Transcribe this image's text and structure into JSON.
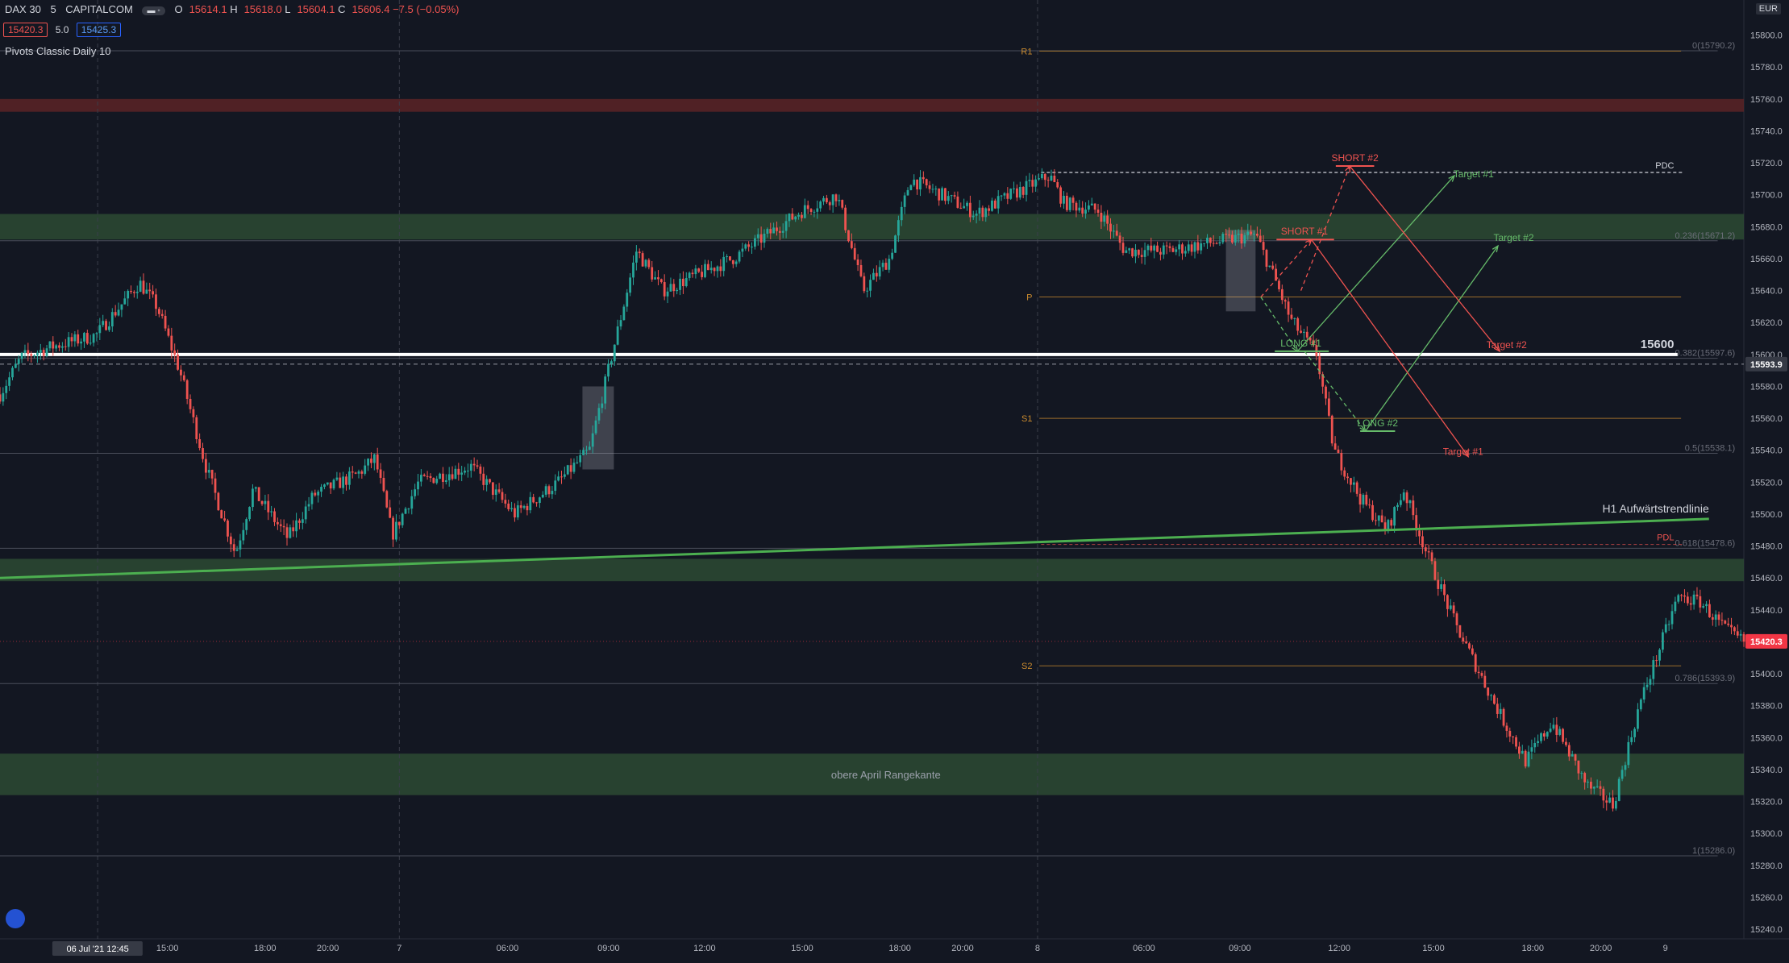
{
  "header": {
    "symbol": "DAX 30",
    "interval": "5",
    "exchange": "CAPITALCOM",
    "ohlc": {
      "o_label": "O",
      "o": "15614.1",
      "h_label": "H",
      "h": "15618.0",
      "l_label": "L",
      "l": "15604.1",
      "c_label": "C",
      "c": "15606.4",
      "change": "−7.5 (−0.05%)"
    },
    "sell_price": "15420.3",
    "spread": "5.0",
    "buy_price": "15425.3",
    "indicator": "Pivots Classic Daily 10",
    "currency": "EUR"
  },
  "colors": {
    "background": "#131722",
    "up": "#26a69a",
    "down": "#ef5350",
    "zone_green": "#2d4a33",
    "zone_red": "#5c2326",
    "trendline": "#4caf50",
    "pivot": "#c98a2e",
    "short": "#ef5350",
    "long": "#66bb6a",
    "price_tag": "#f23645"
  },
  "chart_data": {
    "type": "candlestick",
    "y_axis": {
      "ylim": [
        15234,
        15822
      ],
      "ticks": [
        "15800.0",
        "15780.0",
        "15760.0",
        "15740.0",
        "15720.0",
        "15700.0",
        "15680.0",
        "15660.0",
        "15640.0",
        "15620.0",
        "15600.0",
        "15580.0",
        "15560.0",
        "15540.0",
        "15520.0",
        "15500.0",
        "15480.0",
        "15460.0",
        "15440.0",
        "15420.0",
        "15400.0",
        "15380.0",
        "15360.0",
        "15340.0",
        "15320.0",
        "15300.0",
        "15280.0",
        "15260.0",
        "15240.0"
      ]
    },
    "x_axis": {
      "ticks": [
        "15:00",
        "18:00",
        "20:00",
        "7",
        "06:00",
        "09:00",
        "12:00",
        "15:00",
        "18:00",
        "20:00",
        "8",
        "06:00",
        "09:00",
        "12:00",
        "15:00",
        "18:00",
        "20:00",
        "9"
      ],
      "cursor_label": "06 Jul '21  12:45"
    },
    "price_path": [
      [
        0,
        15575
      ],
      [
        1.2,
        15598
      ],
      [
        3,
        15605
      ],
      [
        5.5,
        15612
      ],
      [
        8,
        15645
      ],
      [
        9,
        15630
      ],
      [
        10.3,
        15590
      ],
      [
        11.8,
        15530
      ],
      [
        13.5,
        15475
      ],
      [
        14.5,
        15515
      ],
      [
        16.5,
        15485
      ],
      [
        18,
        15512
      ],
      [
        20.5,
        15525
      ],
      [
        21.5,
        15535
      ],
      [
        22.5,
        15487
      ],
      [
        24,
        15520
      ],
      [
        27,
        15530
      ],
      [
        29.5,
        15500
      ],
      [
        32,
        15520
      ],
      [
        33.8,
        15540
      ],
      [
        36.5,
        15665
      ],
      [
        38,
        15640
      ],
      [
        42,
        15660
      ],
      [
        46,
        15690
      ],
      [
        48,
        15700
      ],
      [
        49.5,
        15640
      ],
      [
        51,
        15660
      ],
      [
        52.2,
        15710
      ],
      [
        54,
        15700
      ],
      [
        56,
        15688
      ],
      [
        58,
        15700
      ],
      [
        60.2,
        15712
      ],
      [
        61,
        15695
      ],
      [
        63,
        15690
      ],
      [
        64.5,
        15665
      ],
      [
        67,
        15665
      ],
      [
        69.5,
        15670
      ],
      [
        72,
        15675
      ],
      [
        73,
        15650
      ],
      [
        74,
        15622
      ],
      [
        75.5,
        15600
      ],
      [
        76.5,
        15540
      ],
      [
        78,
        15510
      ],
      [
        79.5,
        15490
      ],
      [
        80.5,
        15515
      ],
      [
        82,
        15470
      ],
      [
        83.5,
        15430
      ],
      [
        86,
        15375
      ],
      [
        87.5,
        15345
      ],
      [
        89,
        15370
      ],
      [
        91,
        15330
      ],
      [
        92.5,
        15318
      ],
      [
        94,
        15380
      ],
      [
        96.2,
        15448
      ],
      [
        97.5,
        15445
      ],
      [
        99,
        15427
      ],
      [
        100,
        15420
      ]
    ],
    "zones": [
      {
        "type": "resistance",
        "from": 15752,
        "to": 15760
      },
      {
        "type": "support",
        "from": 15672,
        "to": 15688
      },
      {
        "type": "support",
        "from": 15458,
        "to": 15472
      },
      {
        "type": "support",
        "from": 15324,
        "to": 15350,
        "label": "obere April Rangekante"
      }
    ],
    "pivots": [
      {
        "name": "R1",
        "value": 15790
      },
      {
        "name": "P",
        "value": 15636
      },
      {
        "name": "S1",
        "value": 15560
      },
      {
        "name": "S2",
        "value": 15405
      }
    ],
    "fib_levels": [
      {
        "label": "0(15790.2)",
        "value": 15790.2
      },
      {
        "label": "0.236(15671.2)",
        "value": 15671.2
      },
      {
        "label": "0.382(15597.6)",
        "value": 15597.6
      },
      {
        "label": "0.5(15538.1)",
        "value": 15538.1
      },
      {
        "label": "0.618(15478.6)",
        "value": 15478.6
      },
      {
        "label": "0.786(15393.9)",
        "value": 15393.9
      },
      {
        "label": "1(15286.0)",
        "value": 15286.0
      }
    ],
    "key_level": {
      "label": "15600",
      "value": 15600
    },
    "pdc": {
      "label": "PDC",
      "value": 15714
    },
    "pdl": {
      "label": "PDL",
      "value": 15481
    },
    "trendline": {
      "label": "H1 Aufwärtstrendlinie",
      "start": 15460,
      "end": 15497
    },
    "crosshair_price": "15593.9",
    "last_price": "15420.3",
    "trade_plan": {
      "short1": "SHORT #1",
      "short2": "SHORT #2",
      "long1": "LONG #1",
      "long2": "LONG #2",
      "t1_long": "Target #1",
      "t2_long": "Target #2",
      "t1_short": "Target #1",
      "t2_short": "Target #2",
      "values": {
        "short1": 15672,
        "short2": 15718,
        "long1": 15602,
        "long2": 15552,
        "t1_long": 15712,
        "t2_long": 15668,
        "t1_short": 15536,
        "t2_short": 15602
      }
    }
  }
}
